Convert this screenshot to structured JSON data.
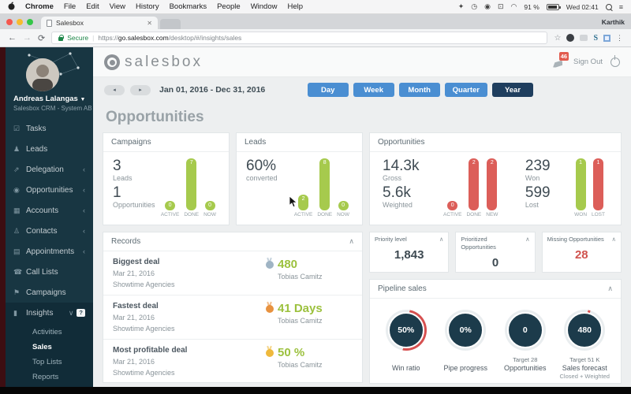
{
  "colors": {
    "accent_blue": "#4a8ed2",
    "active_navy": "#1f3e5e",
    "bar_green": "#a6ca4d",
    "bar_red": "#dc5e59",
    "gauge_navy": "#1c3b4b",
    "gauge_arc": "#d65050",
    "negative_red": "#d0534e",
    "sidebar_bg": "#183642"
  },
  "menubar": {
    "items": [
      "Chrome",
      "File",
      "Edit",
      "View",
      "History",
      "Bookmarks",
      "People",
      "Window",
      "Help"
    ],
    "battery": "91 %",
    "status_time": "Wed 02:41"
  },
  "browser": {
    "tab_title": "Salesbox",
    "profile": "Karthik",
    "secure_label": "Secure",
    "url_scheme": "https://",
    "url_host": "go.salesbox.com",
    "url_path": "/desktop/#/insights/sales"
  },
  "sidebar": {
    "user_name": "Andreas Lalangas",
    "user_org": "Salesbox CRM - System AB",
    "items": [
      {
        "label": "Tasks"
      },
      {
        "label": "Leads"
      },
      {
        "label": "Delegation"
      },
      {
        "label": "Opportunities"
      },
      {
        "label": "Accounts"
      },
      {
        "label": "Contacts"
      },
      {
        "label": "Appointments"
      },
      {
        "label": "Call Lists"
      },
      {
        "label": "Campaigns"
      },
      {
        "label": "Insights"
      }
    ],
    "insights_badge": "?",
    "insights_sub": [
      "Activities",
      "Sales",
      "Top Lists",
      "Reports"
    ],
    "active_sub": "Sales"
  },
  "header": {
    "logo": "salesbox",
    "notification_count": "46",
    "sign_out_label": "Sign Out"
  },
  "daterange": {
    "label": "Jan 01, 2016 - Dec 31, 2016",
    "buttons": [
      "Day",
      "Week",
      "Month",
      "Quarter",
      "Year"
    ],
    "active": "Year"
  },
  "main": {
    "page_title": "Opportunities"
  },
  "cards": {
    "campaigns": {
      "title": "Campaigns",
      "stats": [
        {
          "value": "3",
          "label": "Leads"
        },
        {
          "value": "1",
          "label": "Opportunities"
        }
      ],
      "chart": {
        "type": "bar",
        "categories": [
          "ACTIVE",
          "DONE",
          "NOW"
        ],
        "values": [
          0,
          7,
          0
        ],
        "color": "#a6ca4d"
      }
    },
    "leads": {
      "title": "Leads",
      "stats": [
        {
          "value": "60%",
          "label": "converted"
        }
      ],
      "chart": {
        "type": "bar",
        "categories": [
          "ACTIVE",
          "DONE",
          "NOW"
        ],
        "values": [
          2,
          8,
          0
        ],
        "color": "#a6ca4d"
      }
    },
    "opportunities": {
      "title": "Opportunities",
      "stats_left": [
        {
          "value": "14.3k",
          "label": "Gross"
        },
        {
          "value": "5.6k",
          "label": "Weighted"
        }
      ],
      "chart_left": {
        "type": "bar",
        "categories": [
          "ACTIVE",
          "DONE",
          "NEW"
        ],
        "values": [
          0,
          2,
          2
        ],
        "color": "#dc5e59"
      },
      "stats_right": [
        {
          "value": "239",
          "label": "Won"
        },
        {
          "value": "599",
          "label": "Lost"
        }
      ],
      "chart_right": {
        "type": "bar",
        "categories": [
          "WON",
          "LOST"
        ],
        "values": [
          1,
          1
        ],
        "bar_colors": [
          "#a6ca4d",
          "#dc5e59"
        ]
      }
    }
  },
  "records": {
    "title": "Records",
    "rows": [
      {
        "name": "Biggest deal",
        "date": "Mar 21, 2016",
        "company": "Showtime Agencies",
        "value": "480",
        "person": "Tobias Camitz",
        "medal": "silver"
      },
      {
        "name": "Fastest deal",
        "date": "Mar 21, 2016",
        "company": "Showtime Agencies",
        "value": "41 Days",
        "person": "Tobias Camitz",
        "medal": "bronze"
      },
      {
        "name": "Most profitable deal",
        "date": "Mar 21, 2016",
        "company": "Showtime Agencies",
        "value": "50 %",
        "person": "Tobias Camitz",
        "medal": "gold"
      }
    ]
  },
  "stat_cards": [
    {
      "title": "Priority level",
      "value": "1,843"
    },
    {
      "title": "Prioritized Opportunities",
      "value": "0"
    },
    {
      "title": "Missing Opportunities",
      "value": "28"
    }
  ],
  "pipeline": {
    "title": "Pipeline sales",
    "gauges": [
      {
        "value": "50%",
        "label1": "",
        "label2": "Win ratio",
        "label3": "",
        "progress": 50
      },
      {
        "value": "0%",
        "label1": "",
        "label2": "Pipe progress",
        "label3": "",
        "progress": 0
      },
      {
        "value": "0",
        "label1": "Target 28",
        "label2": "Opportunities",
        "label3": "",
        "progress": 0
      },
      {
        "value": "480",
        "label1": "Target 51 K",
        "label2": "Sales forecast",
        "label3": "Closed + Weighted",
        "progress": 2
      }
    ]
  },
  "icons": {
    "menubar_right": [
      "dropbox-icon",
      "clock-icon",
      "chrome-icon",
      "display-icon",
      "wifi-icon",
      "battery-icon",
      "search-icon",
      "list-icon"
    ],
    "sidebar": [
      "tasks-icon",
      "leads-icon",
      "delegation-icon",
      "opportunities-icon",
      "accounts-icon",
      "contacts-icon",
      "appointments-icon",
      "call-lists-icon",
      "campaigns-icon",
      "insights-icon"
    ]
  }
}
